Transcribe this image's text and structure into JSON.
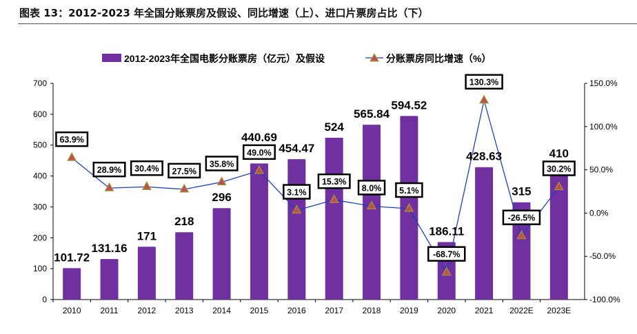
{
  "title": "图表 13：2012-2023 年全国分账票房及假设、同比增速（上）、进口片票房占比（下）",
  "chart_data": {
    "type": "bar+line",
    "categories": [
      "2010",
      "2011",
      "2012",
      "2013",
      "2014",
      "2015",
      "2016",
      "2017",
      "2018",
      "2019",
      "2020",
      "2021",
      "2022E",
      "2023E"
    ],
    "series": [
      {
        "name": "2012-2023年全国电影分账票房（亿元）及假设",
        "type": "bar",
        "axis": "left",
        "color": "#7030A0",
        "values": [
          101.72,
          131.16,
          171,
          218,
          296,
          440.69,
          454.47,
          524,
          565.84,
          594.52,
          186.11,
          428.63,
          315,
          410
        ],
        "labels": [
          "101.72",
          "131.16",
          "171",
          "218",
          "296",
          "440.69",
          "454.47",
          "524",
          "565.84",
          "594.52",
          "186.11",
          "428.63",
          "315",
          "410"
        ]
      },
      {
        "name": "分账票房同比增速（%）",
        "type": "line",
        "axis": "right",
        "color": "#1F3FBF",
        "marker_color": "#C0504D",
        "values": [
          63.9,
          28.9,
          30.4,
          27.5,
          35.8,
          49.0,
          3.1,
          15.3,
          8.0,
          5.1,
          -68.7,
          130.3,
          -26.5,
          30.2
        ],
        "labels": [
          "63.9%",
          "28.9%",
          "30.4%",
          "27.5%",
          "35.8%",
          "49.0%",
          "3.1%",
          "15.3%",
          "8.0%",
          "5.1%",
          "-68.7%",
          "130.3%",
          "-26.5%",
          "30.2%"
        ]
      }
    ],
    "ylim": [
      0,
      700
    ],
    "yticks": [
      "0",
      "100",
      "200",
      "300",
      "400",
      "500",
      "600",
      "700"
    ],
    "y2lim": [
      -100,
      150
    ],
    "y2ticks": [
      "-100.0%",
      "-50.0%",
      "0.0%",
      "50.0%",
      "100.0%",
      "150.0%"
    ],
    "legend": "top-center"
  }
}
